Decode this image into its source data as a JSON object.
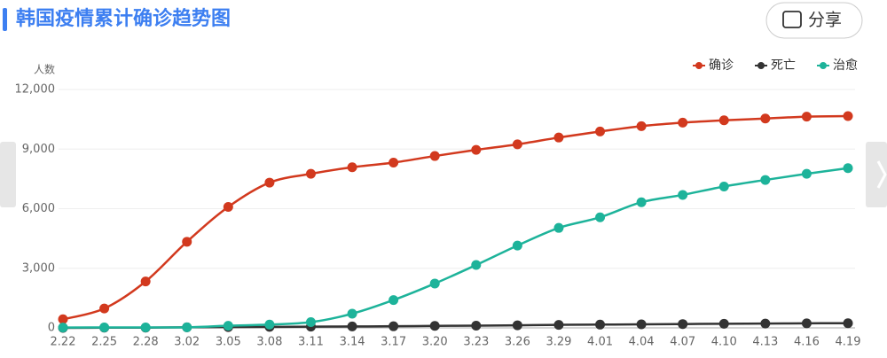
{
  "share_label": "分享",
  "chart_data": {
    "type": "line",
    "title": "韩国疫情累计确诊趋势图",
    "ylabel": "人数",
    "categories": [
      "2.22",
      "2.25",
      "2.28",
      "3.02",
      "3.05",
      "3.08",
      "3.11",
      "3.14",
      "3.17",
      "3.20",
      "3.23",
      "3.26",
      "3.29",
      "4.01",
      "4.04",
      "4.07",
      "4.10",
      "4.13",
      "4.16",
      "4.19"
    ],
    "series": [
      {
        "name": "确诊",
        "color": "#d2391e",
        "values": [
          433,
          977,
          2337,
          4335,
          6088,
          7313,
          7755,
          8086,
          8320,
          8652,
          8961,
          9241,
          9583,
          9887,
          10156,
          10331,
          10450,
          10537,
          10635,
          10661
        ]
      },
      {
        "name": "死亡",
        "color": "#333333",
        "values": [
          2,
          10,
          13,
          28,
          40,
          50,
          60,
          72,
          81,
          102,
          111,
          131,
          152,
          165,
          177,
          192,
          208,
          217,
          230,
          234
        ]
      },
      {
        "name": "治愈",
        "color": "#1db39a",
        "values": [
          16,
          22,
          22,
          30,
          108,
          166,
          288,
          714,
          1401,
          2233,
          3166,
          4144,
          5033,
          5567,
          6325,
          6694,
          7117,
          7447,
          7757,
          8042
        ]
      }
    ],
    "ylim": [
      0,
      12000
    ],
    "yticks": [
      0,
      {
        "value": 3000,
        "label": "3,000"
      },
      {
        "value": 6000,
        "label": "6,000"
      },
      {
        "value": 9000,
        "label": "9,000"
      },
      {
        "value": 12000,
        "label": "12,000"
      }
    ],
    "grid": true,
    "legend": "top-right"
  }
}
